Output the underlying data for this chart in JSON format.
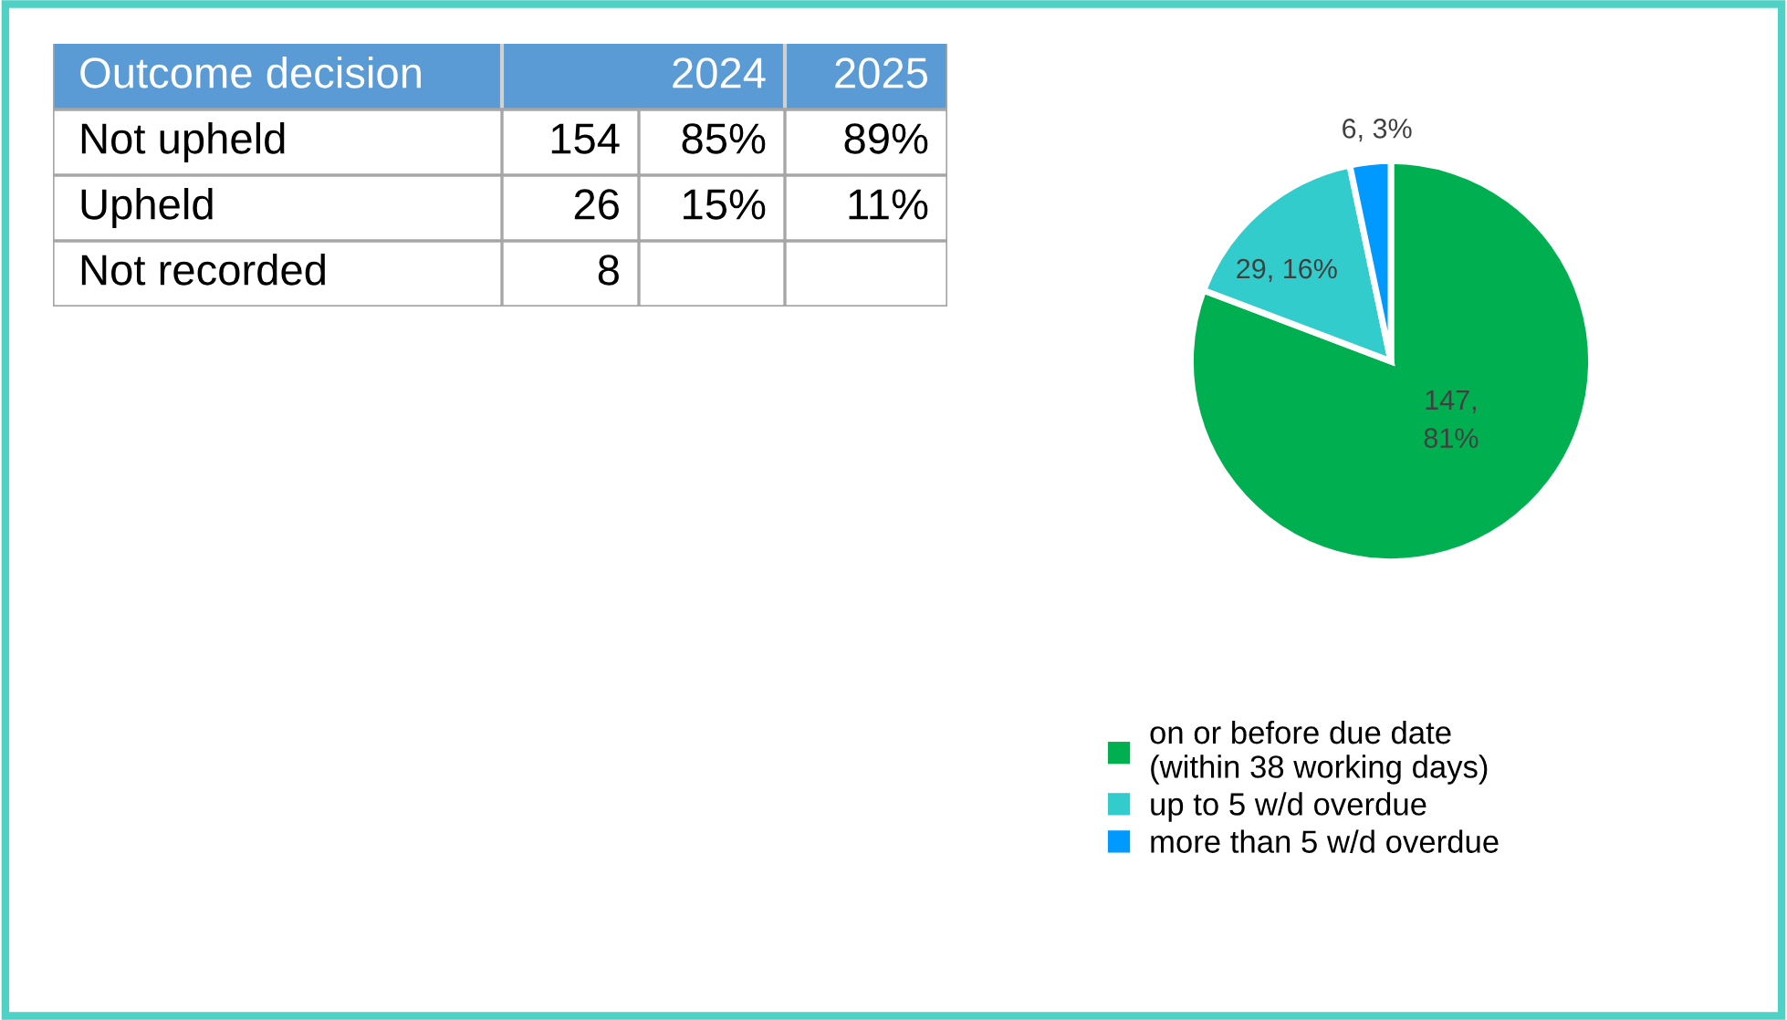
{
  "chart_data": [
    {
      "type": "other",
      "categories": [
        "Outcome decision",
        "2024",
        "2025"
      ],
      "y_categories": [
        "Not upheld",
        "Upheld",
        "Not recorded"
      ],
      "cell_labels": [
        [
          "154",
          "85%",
          "89%"
        ],
        [
          "26",
          "15%",
          "11%"
        ],
        [
          "8",
          null,
          null
        ]
      ]
    },
    {
      "type": "pie",
      "categories": [
        "on or before due date\n(within 38 working days)",
        "up to 5 w/d overdue",
        "more than 5 w/d overdue"
      ],
      "values": [
        147,
        29,
        6
      ],
      "colors": [
        "#00b050",
        "#33cccc",
        "#0099ff"
      ],
      "value_labels": [
        "147,\n81%",
        "29, 16%",
        "6, 3%"
      ],
      "legend": "bottom"
    }
  ]
}
